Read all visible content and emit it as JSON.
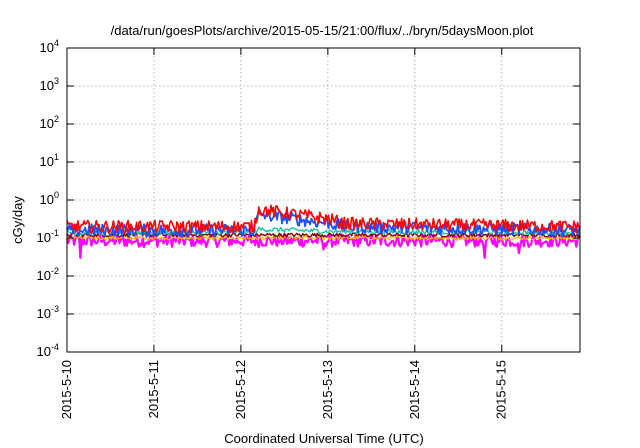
{
  "chart_data": {
    "type": "line",
    "title": "/data/run/goesPlots/archive/2015-05-15/21:00/flux/../bryn/5daysMoon.plot",
    "xlabel": "Coordinated Universal Time (UTC)",
    "ylabel": "cGy/day",
    "yscale": "log",
    "ylim": [
      0.0001,
      10000
    ],
    "xlim": [
      0,
      5.9
    ],
    "grid": true,
    "x_ticks": [
      {
        "value": 0,
        "label": "2015-5-10"
      },
      {
        "value": 1,
        "label": "2015-5-11"
      },
      {
        "value": 2,
        "label": "2015-5-12"
      },
      {
        "value": 3,
        "label": "2015-5-13"
      },
      {
        "value": 4,
        "label": "2015-5-14"
      },
      {
        "value": 5,
        "label": "2015-5-15"
      }
    ],
    "y_ticks": [
      {
        "value": 0.0001,
        "base": "10",
        "exp": "-4"
      },
      {
        "value": 0.001,
        "base": "10",
        "exp": "-3"
      },
      {
        "value": 0.01,
        "base": "10",
        "exp": "-2"
      },
      {
        "value": 0.1,
        "base": "10",
        "exp": "-1"
      },
      {
        "value": 1,
        "base": "10",
        "exp": "0"
      },
      {
        "value": 10,
        "base": "10",
        "exp": "1"
      },
      {
        "value": 100,
        "base": "10",
        "exp": "2"
      },
      {
        "value": 1000,
        "base": "10",
        "exp": "3"
      },
      {
        "value": 10000,
        "base": "10",
        "exp": "4"
      }
    ],
    "series": [
      {
        "name": "magenta",
        "color": "#ff00ff",
        "width": 2.2,
        "noise": 0.38,
        "dips": [
          [
            0.15,
            0.03
          ],
          [
            2.95,
            0.05
          ],
          [
            4.8,
            0.03
          ],
          [
            5.2,
            0.04
          ]
        ],
        "x": [
          0,
          2.0,
          2.2,
          2.6,
          3.0,
          5.9
        ],
        "y": [
          0.085,
          0.085,
          0.085,
          0.085,
          0.085,
          0.085
        ]
      },
      {
        "name": "yellow",
        "color": "#f0c000",
        "width": 1.2,
        "noise": 0.12,
        "dips": [],
        "x": [
          0,
          5.9
        ],
        "y": [
          0.1,
          0.1
        ]
      },
      {
        "name": "maroon",
        "color": "#800000",
        "width": 1.4,
        "noise": 0.12,
        "dips": [],
        "x": [
          0,
          5.9
        ],
        "y": [
          0.12,
          0.12
        ]
      },
      {
        "name": "teal",
        "color": "#20c0a0",
        "width": 1.4,
        "noise": 0.15,
        "dips": [],
        "x": [
          0,
          2.15,
          2.2,
          2.6,
          3.0,
          5.9
        ],
        "y": [
          0.14,
          0.14,
          0.17,
          0.16,
          0.15,
          0.14
        ]
      },
      {
        "name": "blue",
        "color": "#1e50ff",
        "width": 1.8,
        "noise": 0.38,
        "dips": [],
        "x": [
          0,
          2.15,
          2.2,
          2.5,
          2.8,
          3.0,
          3.2,
          5.9
        ],
        "y": [
          0.16,
          0.16,
          0.42,
          0.34,
          0.28,
          0.25,
          0.2,
          0.16
        ]
      },
      {
        "name": "red",
        "color": "#ff0000",
        "width": 1.6,
        "noise": 0.38,
        "dips": [],
        "x": [
          0,
          2.15,
          2.2,
          2.5,
          2.8,
          3.0,
          3.2,
          5.9
        ],
        "y": [
          0.2,
          0.2,
          0.56,
          0.46,
          0.37,
          0.32,
          0.24,
          0.2
        ]
      }
    ]
  }
}
